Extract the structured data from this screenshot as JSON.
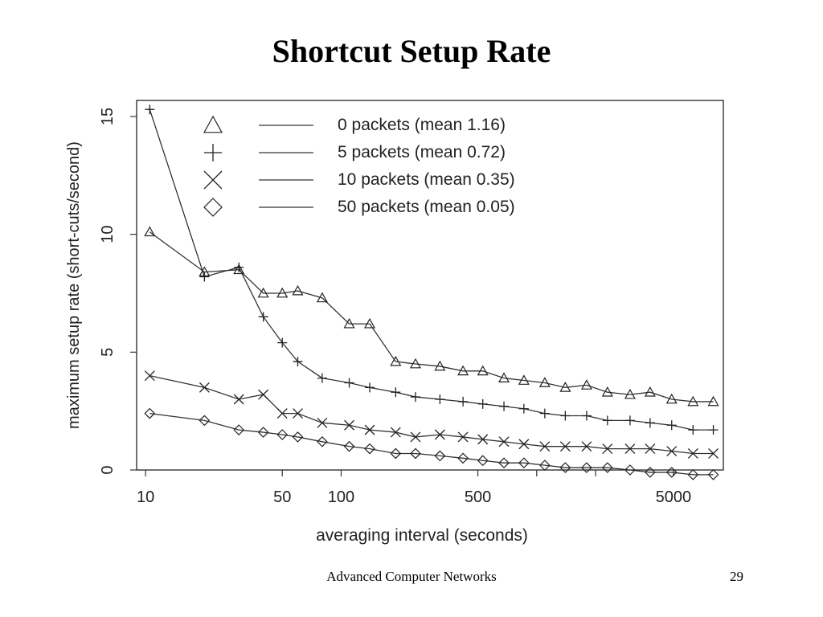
{
  "slide": {
    "title": "Shortcut Setup Rate",
    "footer": "Advanced Computer Networks",
    "page_number": "29"
  },
  "chart_data": {
    "type": "line",
    "title": "",
    "xlabel": "averaging interval (seconds)",
    "ylabel": "maximum setup rate (short-cuts/second)",
    "x_scale": "log",
    "xlim": [
      9,
      9000
    ],
    "ylim": [
      0,
      15
    ],
    "x_ticks": [
      10,
      50,
      100,
      500,
      5000
    ],
    "x_tick_labels": [
      "10",
      "50",
      "100",
      "500",
      "5000"
    ],
    "x_minor_ticks": [
      1000,
      2000
    ],
    "y_ticks": [
      0,
      5,
      10,
      15
    ],
    "y_tick_labels": [
      "0",
      "5",
      "10",
      "15"
    ],
    "grid": false,
    "legend_position": "top",
    "series": [
      {
        "name": "0 packets (mean 1.16)",
        "marker": "triangle",
        "x": [
          10.5,
          20,
          30,
          40,
          50,
          60,
          80,
          110,
          140,
          190,
          240,
          320,
          420,
          530,
          680,
          860,
          1100,
          1400,
          1800,
          2300,
          3000,
          3800,
          4900,
          6300,
          8000
        ],
        "y": [
          10.1,
          8.4,
          8.5,
          7.5,
          7.5,
          7.6,
          7.3,
          6.2,
          6.2,
          4.6,
          4.5,
          4.4,
          4.2,
          4.2,
          3.9,
          3.8,
          3.7,
          3.5,
          3.6,
          3.3,
          3.2,
          3.3,
          3.0,
          2.9,
          2.9
        ]
      },
      {
        "name": "5 packets (mean 0.72)",
        "marker": "plus",
        "x": [
          10.5,
          20,
          30,
          40,
          50,
          60,
          80,
          110,
          140,
          190,
          240,
          320,
          420,
          530,
          680,
          860,
          1100,
          1400,
          1800,
          2300,
          3000,
          3800,
          4900,
          6300,
          8000
        ],
        "y": [
          15.3,
          8.2,
          8.6,
          6.5,
          5.4,
          4.6,
          3.9,
          3.7,
          3.5,
          3.3,
          3.1,
          3.0,
          2.9,
          2.8,
          2.7,
          2.6,
          2.4,
          2.3,
          2.3,
          2.1,
          2.1,
          2.0,
          1.9,
          1.7,
          1.7
        ]
      },
      {
        "name": "10 packets (mean 0.35)",
        "marker": "x",
        "x": [
          10.5,
          20,
          30,
          40,
          50,
          60,
          80,
          110,
          140,
          190,
          240,
          320,
          420,
          530,
          680,
          860,
          1100,
          1400,
          1800,
          2300,
          3000,
          3800,
          4900,
          6300,
          8000
        ],
        "y": [
          4.0,
          3.5,
          3.0,
          3.2,
          2.4,
          2.4,
          2.0,
          1.9,
          1.7,
          1.6,
          1.4,
          1.5,
          1.4,
          1.3,
          1.2,
          1.1,
          1.0,
          1.0,
          1.0,
          0.9,
          0.9,
          0.9,
          0.8,
          0.7,
          0.7
        ]
      },
      {
        "name": "50 packets (mean 0.05)",
        "marker": "diamond",
        "x": [
          10.5,
          20,
          30,
          40,
          50,
          60,
          80,
          110,
          140,
          190,
          240,
          320,
          420,
          530,
          680,
          860,
          1100,
          1400,
          1800,
          2300,
          3000,
          3800,
          4900,
          6300,
          8000
        ],
        "y": [
          2.4,
          2.1,
          1.7,
          1.6,
          1.5,
          1.4,
          1.2,
          1.0,
          0.9,
          0.7,
          0.7,
          0.6,
          0.5,
          0.4,
          0.3,
          0.3,
          0.2,
          0.1,
          0.1,
          0.1,
          0.0,
          -0.1,
          -0.1,
          -0.2,
          -0.2
        ]
      }
    ]
  }
}
